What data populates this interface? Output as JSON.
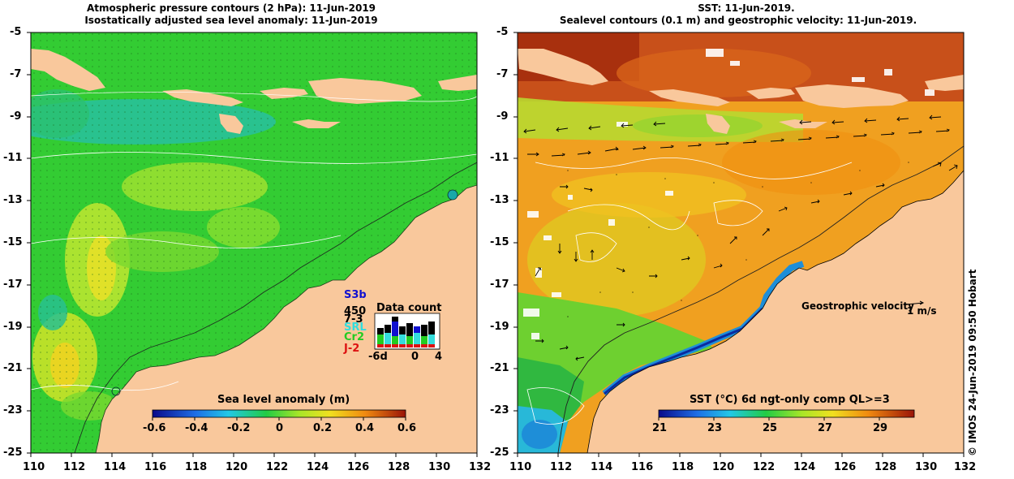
{
  "left_panel": {
    "title_line1": "Atmospheric pressure contours (2 hPa): 11-Jun-2019",
    "title_line2": "Isostatically adjusted sea level anomaly: 11-Jun-2019",
    "x_ticks": [
      "110",
      "112",
      "114",
      "116",
      "118",
      "120",
      "122",
      "124",
      "126",
      "128",
      "130",
      "132"
    ],
    "y_ticks": [
      "-5",
      "-7",
      "-9",
      "-11",
      "-13",
      "-15",
      "-17",
      "-19",
      "-21",
      "-23",
      "-25"
    ],
    "colorbar": {
      "label": "Sea level anomaly (m)",
      "ticks": [
        "-0.6",
        "-0.4",
        "-0.2",
        "0",
        "0.2",
        "0.4",
        "0.6"
      ]
    },
    "data_count": {
      "title": "Data count",
      "missions": [
        {
          "name": "S3b",
          "color": "#1010d0"
        },
        {
          "name": "450",
          "color": "#000000"
        },
        {
          "name": "7-3",
          "color": "#000000"
        },
        {
          "name": "SRL",
          "color": "#33dddd"
        },
        {
          "name": "Cr2",
          "color": "#22cc22"
        },
        {
          "name": "J-2",
          "color": "#dd1111"
        }
      ],
      "axis_ticks": [
        "-6d",
        "0",
        "4"
      ]
    }
  },
  "right_panel": {
    "title_line1": "SST: 11-Jun-2019.",
    "title_line2": "Sealevel contours (0.1 m) and geostrophic velocity: 11-Jun-2019.",
    "x_ticks": [
      "110",
      "112",
      "114",
      "116",
      "118",
      "120",
      "122",
      "124",
      "126",
      "128",
      "130",
      "132"
    ],
    "y_ticks": [
      "-5",
      "-7",
      "-9",
      "-11",
      "-13",
      "-15",
      "-17",
      "-19",
      "-21",
      "-23",
      "-25"
    ],
    "colorbar": {
      "label": "SST (°C) 6d ngt-only comp QL>=3",
      "ticks": [
        "21",
        "23",
        "25",
        "27",
        "29"
      ]
    },
    "velocity_key": {
      "label": "Geostrophic velocity",
      "unit": "1 m/s"
    }
  },
  "credit": "© IMOS 24-Jun-2019 09:50 Hobart",
  "colors": {
    "land": "#f9c89c",
    "ocean_left": "#30cc30",
    "ocean_right": "#f0a020"
  }
}
